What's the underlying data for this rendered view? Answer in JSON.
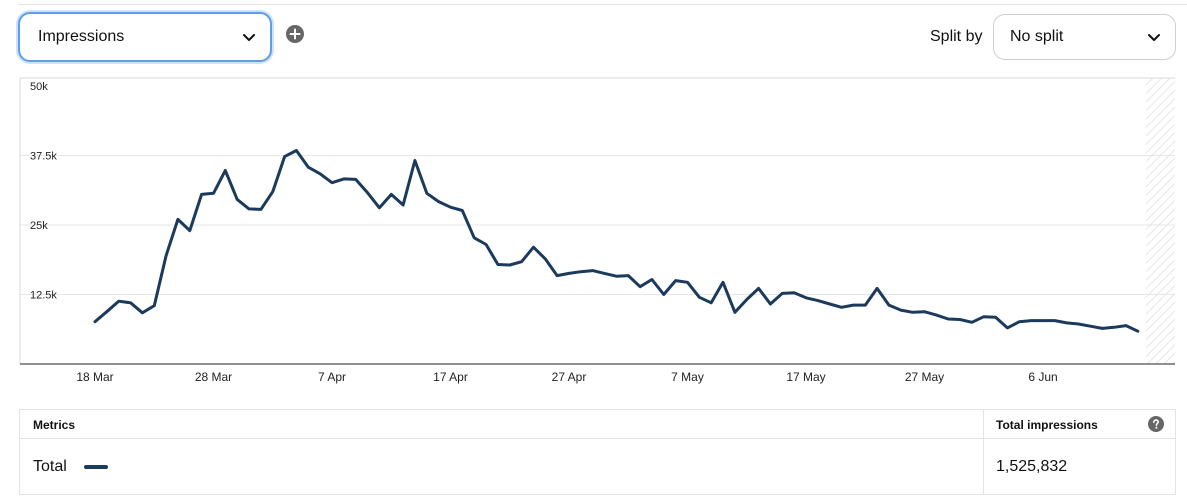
{
  "controls": {
    "metric_select_value": "Impressions",
    "split_label": "Split by",
    "split_select_value": "No split",
    "add_icon": "plus-circle-icon",
    "dropdown_icon": "chevron-down-icon"
  },
  "chart_data": {
    "type": "line",
    "title": "",
    "xlabel": "",
    "ylabel": "",
    "ylim": [
      0,
      50000
    ],
    "yticks": [
      12500,
      25000,
      37500,
      50000
    ],
    "ytick_labels": [
      "12.5k",
      "25k",
      "37.5k",
      "50k"
    ],
    "x_start": "2021-03-18",
    "xtick_labels": [
      "18 Mar",
      "28 Mar",
      "7 Apr",
      "17 Apr",
      "27 Apr",
      "7 May",
      "17 May",
      "27 May",
      "6 Jun"
    ],
    "grid": true,
    "color": "#1b3a5c",
    "series": [
      {
        "name": "Total",
        "values": [
          7600,
          9400,
          11300,
          11000,
          9200,
          10500,
          19500,
          26000,
          24000,
          30500,
          30700,
          34800,
          29600,
          27900,
          27800,
          31000,
          37300,
          38400,
          35400,
          34200,
          32600,
          33300,
          33200,
          30800,
          28100,
          30500,
          28600,
          36600,
          30700,
          29200,
          28200,
          27600,
          22700,
          21500,
          17900,
          17800,
          18400,
          21000,
          18900,
          15900,
          16300,
          16600,
          16800,
          16300,
          15800,
          15900,
          13900,
          15200,
          12500,
          15000,
          14700,
          12000,
          11000,
          14700,
          9300,
          11600,
          13600,
          10800,
          12700,
          12800,
          11900,
          11400,
          10800,
          10200,
          10600,
          10600,
          13600,
          10600,
          9700,
          9300,
          9400,
          8800,
          8100,
          8000,
          7500,
          8500,
          8400,
          6500,
          7600,
          7800,
          7800,
          7800,
          7400,
          7200,
          6800,
          6400,
          6600,
          6900,
          5900
        ]
      }
    ]
  },
  "metrics_table": {
    "header_metrics": "Metrics",
    "header_total": "Total impressions",
    "help_icon": "question-circle-icon",
    "row_label": "Total",
    "row_value": "1,525,832"
  }
}
